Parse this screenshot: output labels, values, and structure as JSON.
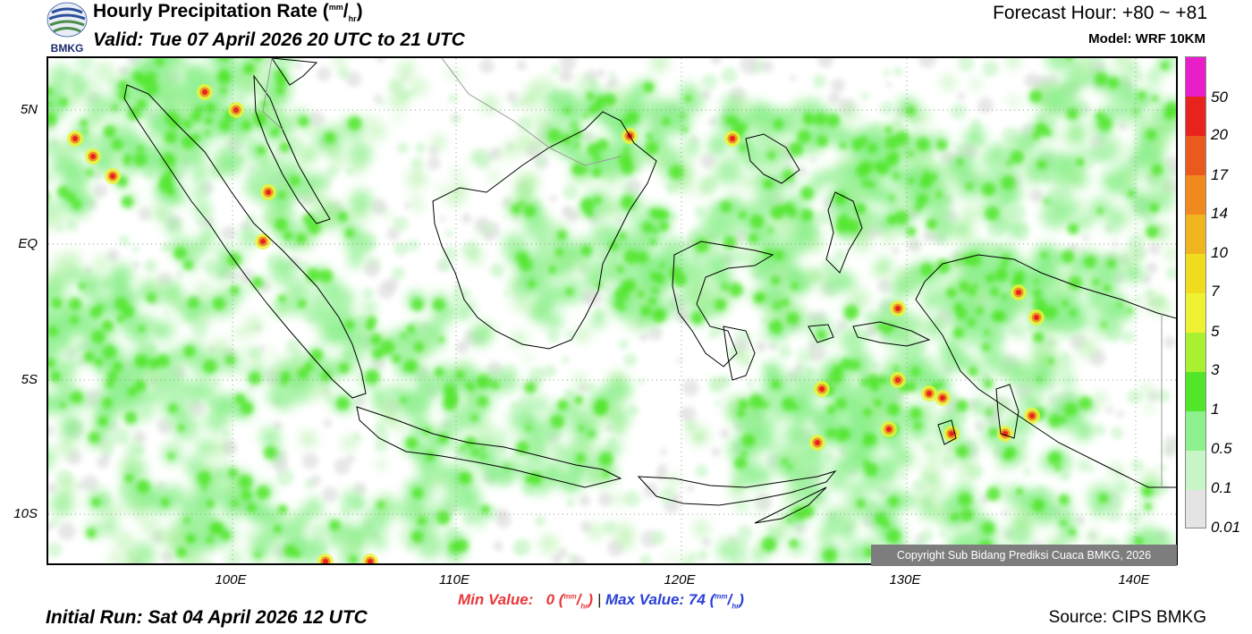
{
  "header": {
    "logo_text": "BMKG",
    "title_main": "Hourly Precipitation Rate (",
    "title_unit_num": "mm",
    "title_unit_den": "hr",
    "title_close": ")",
    "valid": "Valid: Tue 07 April 2026 20 UTC to 21 UTC",
    "forecast_hour": "Forecast Hour: +80 ~ +81",
    "model": "Model: WRF 10KM"
  },
  "map": {
    "lat_labels": [
      "5N",
      "EQ",
      "5S",
      "10S"
    ],
    "lon_labels": [
      "100E",
      "110E",
      "120E",
      "130E",
      "140E"
    ],
    "copyright": "Copyright Sub Bidang Prediksi Cuaca BMKG, 2026"
  },
  "legend": {
    "labels": [
      "50",
      "20",
      "17",
      "14",
      "10",
      "7",
      "5",
      "3",
      "1",
      "0.5",
      "0.1",
      "0.01"
    ],
    "colors": [
      "#e81ec8",
      "#e8231e",
      "#ea5a1e",
      "#f08a1e",
      "#f0b41e",
      "#f0dc1e",
      "#eef232",
      "#aaf032",
      "#52e62a",
      "#8cf08c",
      "#c8f5c8",
      "#e4e4e4"
    ]
  },
  "stats": {
    "min_label": "Min Value:",
    "min_value": "0",
    "separator": "|",
    "max_label": "Max Value:",
    "max_value": "74",
    "unit_num": "mm",
    "unit_den": "hr"
  },
  "footer": {
    "initial_run": "Initial Run: Sat 04 April 2026 12 UTC",
    "source": "Source: CIPS BMKG"
  }
}
